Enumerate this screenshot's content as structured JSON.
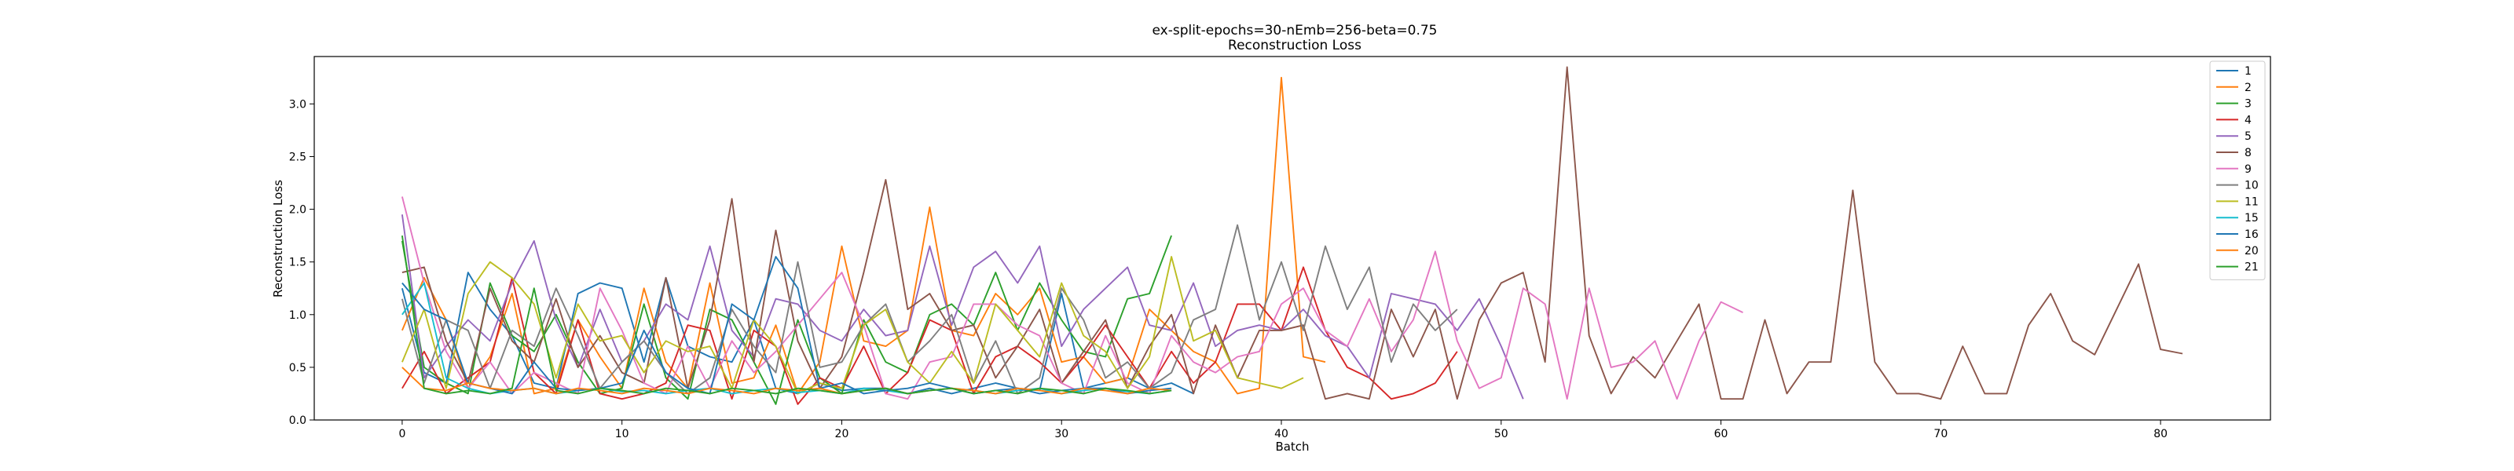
{
  "chart_data": {
    "type": "line",
    "title": "ex-split-epochs=30-nEmb=256-beta=0.75",
    "subtitle": "Reconstruction Loss",
    "xlabel": "Batch",
    "ylabel": "Reconstruction Loss",
    "xlim": [
      -4,
      85
    ],
    "ylim": [
      0,
      3.45
    ],
    "xticks": [
      "0",
      "10",
      "20",
      "30",
      "40",
      "50",
      "60",
      "70",
      "80"
    ],
    "yticks": [
      "0.0",
      "0.5",
      "1.0",
      "1.5",
      "2.0",
      "2.5",
      "3.0"
    ],
    "legend_position": "top-right",
    "grid": false,
    "series": [
      {
        "name": "1",
        "color": "#1f77b4",
        "x_start": 0,
        "values": [
          1.25,
          0.45,
          0.35,
          1.4,
          1.05,
          0.8,
          0.35,
          0.3,
          1.2,
          1.3,
          1.25,
          0.55,
          1.35,
          0.7,
          0.6,
          0.55,
          0.95,
          0.3,
          0.25,
          0.35,
          0.28,
          0.3,
          0.3,
          0.25,
          0.3,
          0.25,
          0.3,
          0.35,
          0.3,
          0.28,
          1.2,
          0.3,
          0.35,
          0.4,
          0.3,
          0.35,
          0.25
        ]
      },
      {
        "name": "2",
        "color": "#ff7f0e",
        "x_start": 0,
        "values": [
          0.85,
          1.35,
          0.95,
          0.3,
          0.6,
          1.2,
          0.25,
          0.3,
          0.95,
          0.6,
          0.3,
          1.25,
          0.55,
          0.3,
          1.3,
          0.35,
          0.4,
          0.9,
          0.25,
          0.55,
          1.65,
          0.75,
          0.7,
          0.85,
          2.02,
          0.85,
          0.8,
          1.2,
          1.0,
          1.25,
          0.55,
          0.6,
          0.35,
          0.4,
          1.05,
          0.85,
          0.65,
          0.55,
          0.25,
          0.3,
          3.25,
          0.6,
          0.55
        ]
      },
      {
        "name": "3",
        "color": "#2ca02c",
        "x_start": 0,
        "values": [
          1.7,
          0.5,
          0.35,
          0.25,
          1.3,
          0.8,
          0.65,
          1.0,
          0.55,
          0.25,
          0.3,
          1.1,
          0.4,
          0.2,
          1.05,
          0.95,
          0.55,
          0.15,
          0.95,
          0.4,
          0.25,
          0.95,
          0.55,
          0.45,
          1.0,
          1.1,
          0.9,
          1.4,
          0.85,
          1.3,
          0.95,
          0.65,
          0.6,
          1.15,
          1.2,
          1.75
        ]
      },
      {
        "name": "4",
        "color": "#d62728",
        "x_start": 0,
        "values": [
          0.3,
          0.65,
          0.25,
          0.4,
          0.55,
          1.35,
          0.45,
          0.25,
          0.95,
          0.25,
          0.2,
          0.25,
          0.35,
          0.9,
          0.85,
          0.2,
          0.85,
          0.7,
          0.15,
          0.4,
          0.3,
          0.7,
          0.25,
          0.45,
          0.95,
          0.85,
          0.25,
          0.6,
          0.7,
          0.55,
          0.35,
          0.6,
          0.9,
          0.6,
          0.3,
          0.65,
          0.35,
          0.55,
          1.1,
          1.1,
          0.85,
          1.45,
          0.85,
          0.5,
          0.4,
          0.2,
          0.25,
          0.35,
          0.65
        ]
      },
      {
        "name": "5",
        "color": "#9467bd",
        "x_start": 0,
        "values": [
          1.95,
          0.4,
          0.7,
          0.95,
          0.75,
          1.3,
          1.7,
          0.95,
          0.5,
          1.05,
          0.55,
          0.75,
          1.1,
          0.95,
          1.65,
          0.85,
          0.6,
          1.15,
          1.1,
          0.85,
          0.75,
          1.05,
          0.8,
          0.85,
          1.65,
          0.9,
          1.45,
          1.6,
          1.3,
          1.65,
          0.7,
          1.05,
          1.25,
          1.45,
          0.9,
          0.85,
          1.3,
          0.7,
          0.85,
          0.9,
          0.85,
          1.05,
          0.8,
          0.7,
          0.4,
          1.2,
          1.15,
          1.1,
          0.85,
          1.15,
          0.7,
          0.2
        ]
      },
      {
        "name": "8",
        "color": "#8c564b",
        "x_start": 0,
        "values": [
          1.4,
          1.45,
          0.75,
          0.35,
          1.25,
          0.75,
          0.55,
          1.15,
          0.5,
          0.8,
          0.45,
          0.35,
          1.35,
          0.3,
          0.95,
          2.1,
          0.55,
          1.8,
          0.75,
          0.3,
          0.6,
          1.4,
          2.28,
          1.05,
          1.2,
          0.85,
          0.9,
          0.4,
          0.7,
          1.05,
          0.35,
          0.65,
          0.95,
          0.3,
          0.7,
          1.0,
          0.25,
          0.9,
          0.4,
          0.85,
          0.85,
          0.9,
          0.2,
          0.25,
          0.2,
          1.05,
          0.6,
          1.05,
          0.2,
          0.95,
          1.3,
          1.4,
          0.55,
          3.35,
          0.8,
          0.25,
          0.6,
          0.4,
          0.75,
          1.1,
          0.2,
          0.2,
          0.95,
          0.25,
          0.55,
          0.55,
          2.18,
          0.55,
          0.25,
          0.25,
          0.2,
          0.7,
          0.25,
          0.25,
          0.9,
          1.2,
          0.75,
          0.62,
          1.05,
          1.48,
          0.67,
          0.63
        ]
      },
      {
        "name": "9",
        "color": "#e377c2",
        "x_start": 0,
        "values": [
          2.12,
          1.3,
          0.65,
          0.3,
          0.55,
          0.25,
          0.45,
          0.35,
          0.25,
          1.25,
          0.85,
          0.35,
          0.25,
          0.7,
          0.3,
          0.75,
          0.45,
          0.65,
          0.9,
          1.15,
          1.4,
          0.9,
          0.25,
          0.2,
          0.55,
          0.6,
          1.1,
          1.1,
          0.9,
          0.8,
          0.35,
          0.25,
          0.8,
          0.35,
          0.25,
          0.8,
          0.55,
          0.45,
          0.6,
          0.65,
          1.1,
          1.25,
          0.85,
          0.7,
          1.15,
          0.65,
          0.95,
          1.6,
          0.75,
          0.3,
          0.4,
          1.25,
          1.1,
          0.2,
          1.25,
          0.5,
          0.55,
          0.75,
          0.2,
          0.75,
          1.12,
          1.02
        ]
      },
      {
        "name": "10",
        "color": "#7f7f7f",
        "x_start": 0,
        "values": [
          1.15,
          0.35,
          0.95,
          0.85,
          0.3,
          0.85,
          0.7,
          1.25,
          0.8,
          0.3,
          0.55,
          0.75,
          0.45,
          0.25,
          0.4,
          1.05,
          0.7,
          0.45,
          1.5,
          0.5,
          0.55,
          0.9,
          1.1,
          0.55,
          0.75,
          1.0,
          0.35,
          0.75,
          0.25,
          0.4,
          1.25,
          0.95,
          0.4,
          0.55,
          0.3,
          0.45,
          0.95,
          1.05,
          1.85,
          0.95,
          1.5,
          0.85,
          1.65,
          1.05,
          1.45,
          0.55,
          1.1,
          0.85,
          1.05
        ]
      },
      {
        "name": "11",
        "color": "#bcbd22",
        "x_start": 0,
        "values": [
          0.55,
          1.05,
          0.3,
          1.2,
          1.5,
          1.35,
          1.1,
          0.4,
          1.1,
          0.75,
          0.8,
          0.45,
          0.75,
          0.65,
          0.7,
          0.3,
          0.95,
          0.7,
          0.25,
          0.35,
          0.3,
          0.9,
          1.05,
          0.55,
          0.35,
          0.65,
          0.35,
          1.1,
          0.85,
          0.6,
          1.3,
          0.8,
          0.65,
          0.3,
          0.6,
          1.55,
          0.75,
          0.85,
          0.4,
          0.35,
          0.3,
          0.4
        ]
      },
      {
        "name": "15",
        "color": "#17becf",
        "x_start": 0,
        "values": [
          1.0,
          1.3,
          0.4,
          0.3,
          0.25,
          0.28,
          0.3,
          0.25,
          0.28,
          0.3,
          0.27,
          0.28,
          0.25,
          0.28,
          0.3,
          0.25,
          0.28,
          0.3,
          0.26,
          0.28,
          0.25,
          0.3,
          0.28,
          0.25,
          0.28,
          0.3,
          0.28,
          0.25,
          0.28,
          0.3,
          0.25,
          0.28,
          0.3,
          0.27,
          0.25,
          0.28
        ]
      },
      {
        "name": "16",
        "color": "#1f77b4",
        "x_start": 0,
        "values": [
          1.3,
          1.05,
          0.95,
          0.35,
          0.3,
          0.25,
          0.55,
          0.3,
          0.28,
          0.3,
          0.35,
          0.85,
          0.45,
          0.3,
          0.25,
          1.1,
          0.95,
          1.55,
          1.25,
          0.3,
          0.35,
          0.25,
          0.28,
          0.3,
          0.35,
          0.3,
          0.25,
          0.28,
          0.3,
          0.25,
          0.28,
          0.3,
          0.3,
          0.25,
          0.28,
          0.3
        ]
      },
      {
        "name": "20",
        "color": "#ff7f0e",
        "x_start": 0,
        "values": [
          0.5,
          0.3,
          0.28,
          0.35,
          0.3,
          0.28,
          0.3,
          0.25,
          0.3,
          0.28,
          0.25,
          0.3,
          0.28,
          0.25,
          0.3,
          0.28,
          0.25,
          0.3,
          0.28,
          0.3,
          0.25,
          0.28,
          0.3,
          0.25,
          0.28,
          0.3,
          0.28,
          0.25,
          0.3,
          0.28,
          0.25,
          0.3,
          0.28,
          0.25,
          0.3,
          0.28
        ]
      },
      {
        "name": "21",
        "color": "#2ca02c",
        "x_start": 0,
        "values": [
          1.75,
          0.3,
          0.25,
          0.28,
          0.25,
          0.3,
          1.25,
          0.28,
          0.25,
          0.3,
          0.28,
          0.25,
          0.3,
          0.28,
          0.25,
          0.3,
          0.28,
          0.25,
          0.3,
          0.28,
          0.25,
          0.28,
          0.3,
          0.25,
          0.28,
          0.3,
          0.25,
          0.28,
          0.25,
          0.3,
          0.28,
          0.25,
          0.3,
          0.28,
          0.25,
          0.28
        ]
      }
    ]
  }
}
